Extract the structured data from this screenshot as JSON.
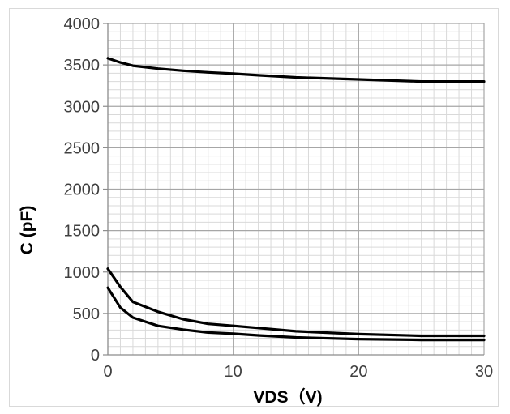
{
  "chart_data": {
    "type": "line",
    "title": "",
    "xlabel": "VDS（V)",
    "ylabel": "C (pF)",
    "xlim": [
      0,
      30
    ],
    "ylim": [
      0,
      4000
    ],
    "x_ticks": [
      "0",
      "10",
      "20",
      "30"
    ],
    "y_ticks": [
      "0",
      "500",
      "1000",
      "1500",
      "2000",
      "2500",
      "3000",
      "3500",
      "4000"
    ],
    "grid": "major and minor",
    "legend": "none",
    "line_color": "#000000",
    "series": [
      {
        "x": [
          0,
          1,
          2,
          4,
          6,
          8,
          10,
          12,
          15,
          20,
          25,
          30
        ],
        "y": [
          3580,
          3530,
          3490,
          3455,
          3430,
          3410,
          3395,
          3375,
          3350,
          3325,
          3300,
          3300
        ]
      },
      {
        "x": [
          0,
          1,
          2,
          4,
          6,
          8,
          10,
          12,
          15,
          20,
          25,
          30
        ],
        "y": [
          1040,
          820,
          640,
          520,
          430,
          375,
          350,
          325,
          285,
          250,
          230,
          230
        ]
      },
      {
        "x": [
          0,
          1,
          2,
          4,
          6,
          8,
          10,
          12,
          15,
          20,
          25,
          30
        ],
        "y": [
          810,
          570,
          450,
          350,
          305,
          270,
          255,
          235,
          210,
          190,
          180,
          180
        ]
      }
    ]
  }
}
